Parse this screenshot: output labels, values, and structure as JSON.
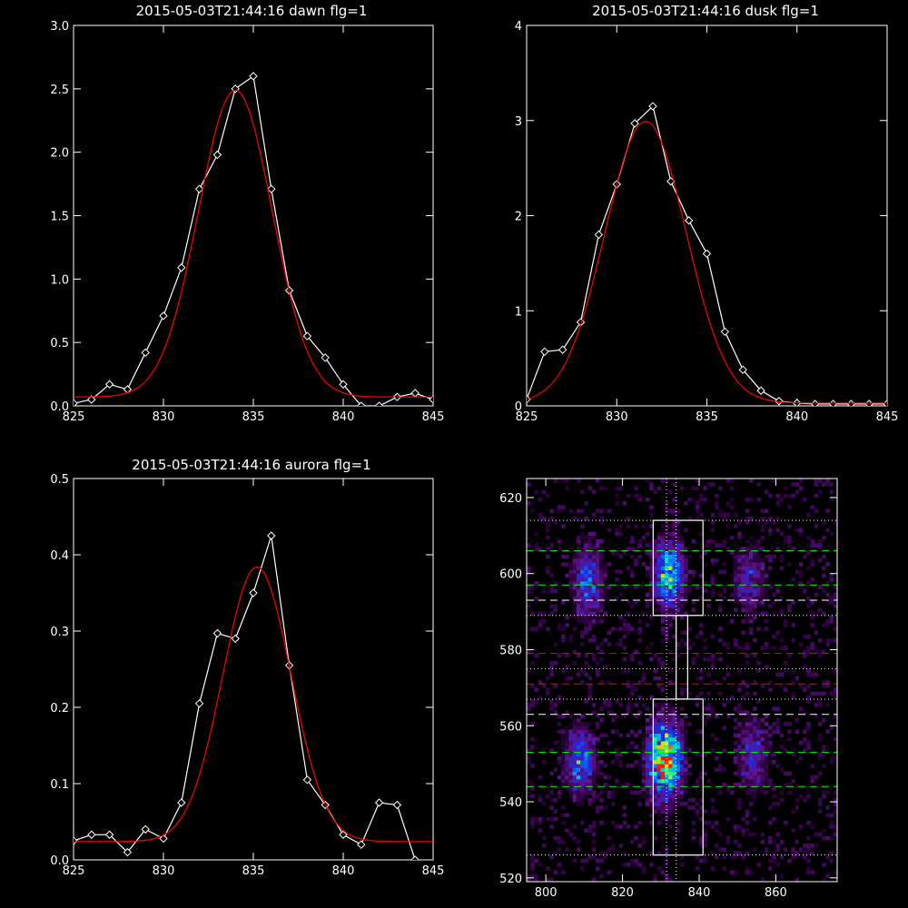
{
  "chart_data": [
    {
      "type": "line",
      "title": "2015-05-03T21:44:16 dawn flg=1",
      "xlim": [
        825,
        845
      ],
      "ylim": [
        0,
        3.0
      ],
      "xticks": [
        "825",
        "830",
        "835",
        "840",
        "845"
      ],
      "yticks": [
        "0.0",
        "0.5",
        "1.0",
        "1.5",
        "2.0",
        "2.5",
        "3.0"
      ],
      "series": [
        {
          "color": "#ffffff",
          "marker": "diamond",
          "x": [
            825,
            826,
            827,
            828,
            829,
            830,
            831,
            832,
            833,
            834,
            835,
            836,
            837,
            838,
            839,
            840,
            841,
            842,
            843,
            844,
            845
          ],
          "y": [
            0.02,
            0.05,
            0.17,
            0.13,
            0.42,
            0.71,
            1.09,
            1.71,
            1.98,
            2.5,
            2.6,
            1.71,
            0.91,
            0.55,
            0.38,
            0.17,
            0.0,
            0.0,
            0.07,
            0.1,
            0.05
          ]
        },
        {
          "color": "#ff0000",
          "fit": "gaussian",
          "amp": 2.42,
          "center": 834.0,
          "sigma": 2.05,
          "offset": 0.07
        }
      ]
    },
    {
      "type": "line",
      "title": "2015-05-03T21:44:16 dusk flg=1",
      "xlim": [
        825,
        845
      ],
      "ylim": [
        0,
        4
      ],
      "xticks": [
        "825",
        "830",
        "835",
        "840",
        "845"
      ],
      "yticks": [
        "0",
        "1",
        "2",
        "3",
        "4"
      ],
      "series": [
        {
          "color": "#ffffff",
          "marker": "diamond",
          "x": [
            825,
            826,
            827,
            828,
            829,
            830,
            831,
            832,
            833,
            834,
            835,
            836,
            837,
            838,
            839,
            840,
            841,
            842,
            843,
            844,
            845
          ],
          "y": [
            0.07,
            0.57,
            0.59,
            0.88,
            1.8,
            2.33,
            2.97,
            3.15,
            2.36,
            1.95,
            1.6,
            0.78,
            0.38,
            0.16,
            0.05,
            0.03,
            0.02,
            0.02,
            0.02,
            0.02,
            0.02
          ]
        },
        {
          "color": "#ff0000",
          "fit": "gaussian",
          "amp": 2.96,
          "center": 831.6,
          "sigma": 2.25,
          "offset": 0.03
        }
      ]
    },
    {
      "type": "line",
      "title": "2015-05-03T21:44:16 aurora flg=1",
      "xlim": [
        825,
        845
      ],
      "ylim": [
        0,
        0.5
      ],
      "xticks": [
        "825",
        "830",
        "835",
        "840",
        "845"
      ],
      "yticks": [
        "0.0",
        "0.1",
        "0.2",
        "0.3",
        "0.4",
        "0.5"
      ],
      "series": [
        {
          "color": "#ffffff",
          "marker": "diamond",
          "x": [
            825,
            826,
            827,
            828,
            829,
            830,
            831,
            832,
            833,
            834,
            835,
            836,
            837,
            838,
            839,
            840,
            841,
            842,
            843,
            844
          ],
          "y": [
            0.025,
            0.033,
            0.033,
            0.01,
            0.04,
            0.028,
            0.075,
            0.205,
            0.297,
            0.29,
            0.35,
            0.425,
            0.255,
            0.105,
            0.072,
            0.033,
            0.02,
            0.075,
            0.072,
            0.0
          ]
        },
        {
          "color": "#ff0000",
          "fit": "gaussian",
          "amp": 0.36,
          "center": 835.2,
          "sigma": 1.9,
          "offset": 0.024
        }
      ]
    },
    {
      "type": "heatmap",
      "title": "",
      "xlim": [
        795,
        876
      ],
      "ylim": [
        519,
        625
      ],
      "xticks": [
        "800",
        "820",
        "840",
        "860"
      ],
      "yticks": [
        "520",
        "540",
        "560",
        "580",
        "600",
        "620"
      ],
      "blobs": [
        {
          "x": 811,
          "y": 598,
          "sx": 2.6,
          "sy": 6.5,
          "amp": 0.38
        },
        {
          "x": 832,
          "y": 600,
          "sx": 2.6,
          "sy": 6.0,
          "amp": 0.62
        },
        {
          "x": 853,
          "y": 598,
          "sx": 2.6,
          "sy": 6.0,
          "amp": 0.28
        },
        {
          "x": 809,
          "y": 551,
          "sx": 2.6,
          "sy": 5.5,
          "amp": 0.45
        },
        {
          "x": 831,
          "y": 551,
          "sx": 2.8,
          "sy": 6.5,
          "amp": 0.92
        },
        {
          "x": 854,
          "y": 552,
          "sx": 2.6,
          "sy": 6.0,
          "amp": 0.3
        }
      ],
      "boxes": [
        {
          "x0": 828,
          "x1": 841,
          "y0": 589,
          "y1": 614
        },
        {
          "x0": 834,
          "x1": 837,
          "y0": 567,
          "y1": 589
        },
        {
          "x0": 828,
          "x1": 841,
          "y0": 526,
          "y1": 567
        }
      ],
      "hlines": [
        {
          "y": 614,
          "color": "#ffffff",
          "style": "dotted"
        },
        {
          "y": 606,
          "color": "#00ff00",
          "style": "dashed"
        },
        {
          "y": 597,
          "color": "#00ff00",
          "style": "dashed"
        },
        {
          "y": 593,
          "color": "#ffffff",
          "style": "dashed"
        },
        {
          "y": 589,
          "color": "#ffffff",
          "style": "dotted"
        },
        {
          "y": 579,
          "color": "#ff0000",
          "style": "dashed"
        },
        {
          "y": 575,
          "color": "#ffffff",
          "style": "dotted"
        },
        {
          "y": 571,
          "color": "#ff0000",
          "style": "dashed"
        },
        {
          "y": 567,
          "color": "#ffffff",
          "style": "dotted"
        },
        {
          "y": 563,
          "color": "#ffffff",
          "style": "dashed"
        },
        {
          "y": 553,
          "color": "#00ff00",
          "style": "dashed"
        },
        {
          "y": 544,
          "color": "#00ff00",
          "style": "dashed"
        },
        {
          "y": 526,
          "color": "#ffffff",
          "style": "dotted"
        }
      ],
      "vlines": [
        {
          "x": 831.5,
          "color": "#ffffff",
          "style": "dotted"
        },
        {
          "x": 834.0,
          "color": "#ffffff",
          "style": "dotted"
        }
      ]
    }
  ]
}
